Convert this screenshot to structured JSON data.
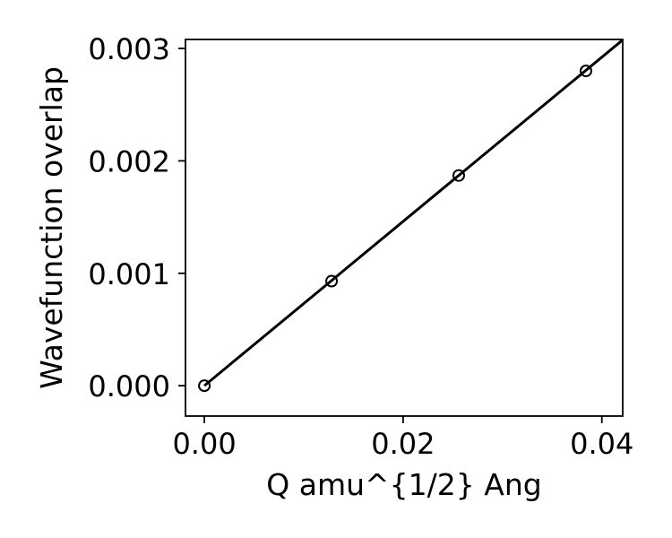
{
  "chart_data": {
    "type": "scatter",
    "title": "",
    "xlabel": "Q amu^{1/2} Ang",
    "ylabel": "Wavefunction overlap",
    "xlim": [
      -0.0019,
      0.0421
    ],
    "ylim": [
      -0.00027,
      0.00308
    ],
    "xticks": [
      0.0,
      0.02,
      0.04
    ],
    "xtick_labels": [
      "0.00",
      "0.02",
      "0.04"
    ],
    "yticks": [
      0.0,
      0.001,
      0.002,
      0.003
    ],
    "ytick_labels": [
      "0.000",
      "0.001",
      "0.002",
      "0.003"
    ],
    "grid": false,
    "legend": "none",
    "series": [
      {
        "kind": "points",
        "marker": "open-circle",
        "color": "#000000",
        "x": [
          0.0,
          0.0128,
          0.0256,
          0.0384
        ],
        "y": [
          0.0,
          0.00093,
          0.00187,
          0.0028
        ]
      },
      {
        "kind": "fit-line",
        "color": "#000000",
        "x": [
          0.0,
          0.0421
        ],
        "y": [
          0.0,
          0.003076
        ]
      }
    ]
  }
}
